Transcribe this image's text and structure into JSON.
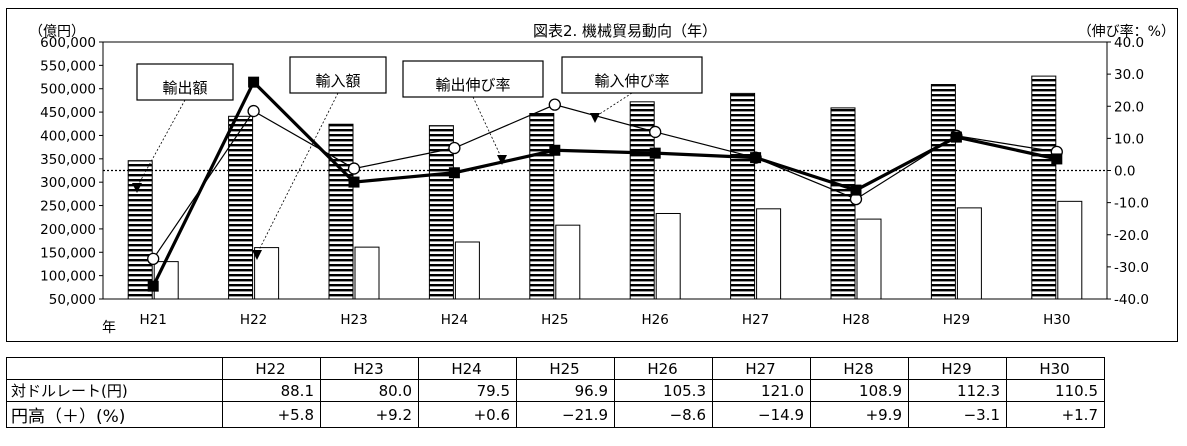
{
  "chart_data": {
    "type": "bar",
    "title": "図表2. 機械貿易動向（年）",
    "left_axis_unit": "（億円）",
    "right_axis_unit": "（伸び率：%）",
    "x_axis_label": "年",
    "categories": [
      "H21",
      "H22",
      "H23",
      "H24",
      "H25",
      "H26",
      "H27",
      "H28",
      "H29",
      "H30"
    ],
    "ylim_left": [
      50000,
      600000
    ],
    "ylim_right": [
      -40.0,
      40.0
    ],
    "left_ticks": [
      "50,000",
      "100,000",
      "150,000",
      "200,000",
      "250,000",
      "300,000",
      "350,000",
      "400,000",
      "450,000",
      "500,000",
      "550,000",
      "600,000"
    ],
    "right_ticks": [
      "-40.0",
      "-30.0",
      "-20.0",
      "-10.0",
      "0.0",
      "10.0",
      "20.0",
      "30.0",
      "40.0"
    ],
    "series": [
      {
        "name": "輸出額",
        "kind": "bar",
        "pattern": "horizontal-stripes",
        "values": [
          346000,
          441000,
          424000,
          421000,
          447000,
          472000,
          490000,
          459000,
          509000,
          527000
        ]
      },
      {
        "name": "輸入額",
        "kind": "bar",
        "pattern": "plain",
        "values": [
          130000,
          160000,
          161000,
          172000,
          208000,
          233000,
          243000,
          221000,
          245000,
          259000
        ]
      },
      {
        "name": "輸出伸び率",
        "kind": "line",
        "marker": "square",
        "values": [
          -36.0,
          27.5,
          -3.6,
          -0.7,
          6.3,
          5.4,
          4.0,
          -6.1,
          10.4,
          3.6
        ]
      },
      {
        "name": "輸入伸び率",
        "kind": "line",
        "marker": "circle",
        "values": [
          -27.5,
          18.5,
          0.6,
          7.0,
          20.5,
          12.0,
          4.0,
          -8.9,
          10.8,
          5.8
        ]
      }
    ],
    "zero_line": "dotted",
    "legend_placement": "callout-boxes-top"
  },
  "table": {
    "headers": [
      "H22",
      "H23",
      "H24",
      "H25",
      "H26",
      "H27",
      "H28",
      "H29",
      "H30"
    ],
    "rows": [
      {
        "label": "対ドルレート(円)",
        "values": [
          "88.1",
          "80.0",
          "79.5",
          "96.9",
          "105.3",
          "121.0",
          "108.9",
          "112.3",
          "110.5"
        ]
      },
      {
        "label": "円高（＋）(%)",
        "values": [
          "+5.8",
          "+9.2",
          "+0.6",
          "−21.9",
          "−8.6",
          "−14.9",
          "+9.9",
          "−3.1",
          "+1.7"
        ]
      }
    ]
  }
}
